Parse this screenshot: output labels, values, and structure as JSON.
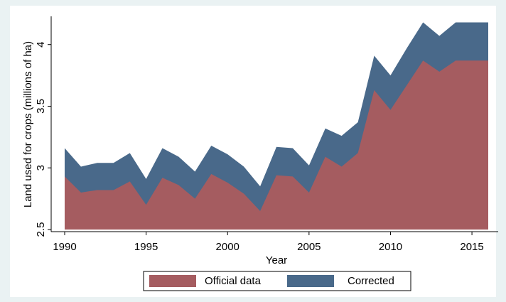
{
  "chart_data": {
    "type": "area",
    "x": [
      1990,
      1991,
      1992,
      1993,
      1994,
      1995,
      1996,
      1997,
      1998,
      1999,
      2000,
      2001,
      2002,
      2003,
      2004,
      2005,
      2006,
      2007,
      2008,
      2009,
      2010,
      2011,
      2012,
      2013,
      2014,
      2015,
      2016
    ],
    "series": [
      {
        "name": "Corrected",
        "color": "#49698a",
        "values": [
          3.16,
          3.01,
          3.04,
          3.04,
          3.12,
          2.91,
          3.16,
          3.09,
          2.97,
          3.18,
          3.11,
          3.01,
          2.85,
          3.17,
          3.16,
          3.02,
          3.32,
          3.26,
          3.37,
          3.91,
          3.75,
          3.97,
          4.18,
          4.07,
          4.18,
          4.18,
          4.18
        ]
      },
      {
        "name": "Official data",
        "color": "#a55c60",
        "values": [
          2.93,
          2.8,
          2.82,
          2.82,
          2.89,
          2.7,
          2.92,
          2.86,
          2.75,
          2.95,
          2.88,
          2.79,
          2.65,
          2.94,
          2.93,
          2.8,
          3.09,
          3.01,
          3.12,
          3.63,
          3.47,
          3.67,
          3.87,
          3.78,
          3.87,
          3.87,
          3.87
        ]
      }
    ],
    "legend_order": [
      "Official data",
      "Corrected"
    ],
    "xlabel": "Year",
    "ylabel": "Land used for crops (millions of ha)",
    "xlim": [
      1990,
      2016
    ],
    "xticks": [
      1990,
      1995,
      2000,
      2005,
      2010,
      2015
    ],
    "ylim": [
      2.5,
      4.2
    ],
    "yticks": [
      2.5,
      3,
      3.5,
      4
    ],
    "legend": "bottom"
  }
}
